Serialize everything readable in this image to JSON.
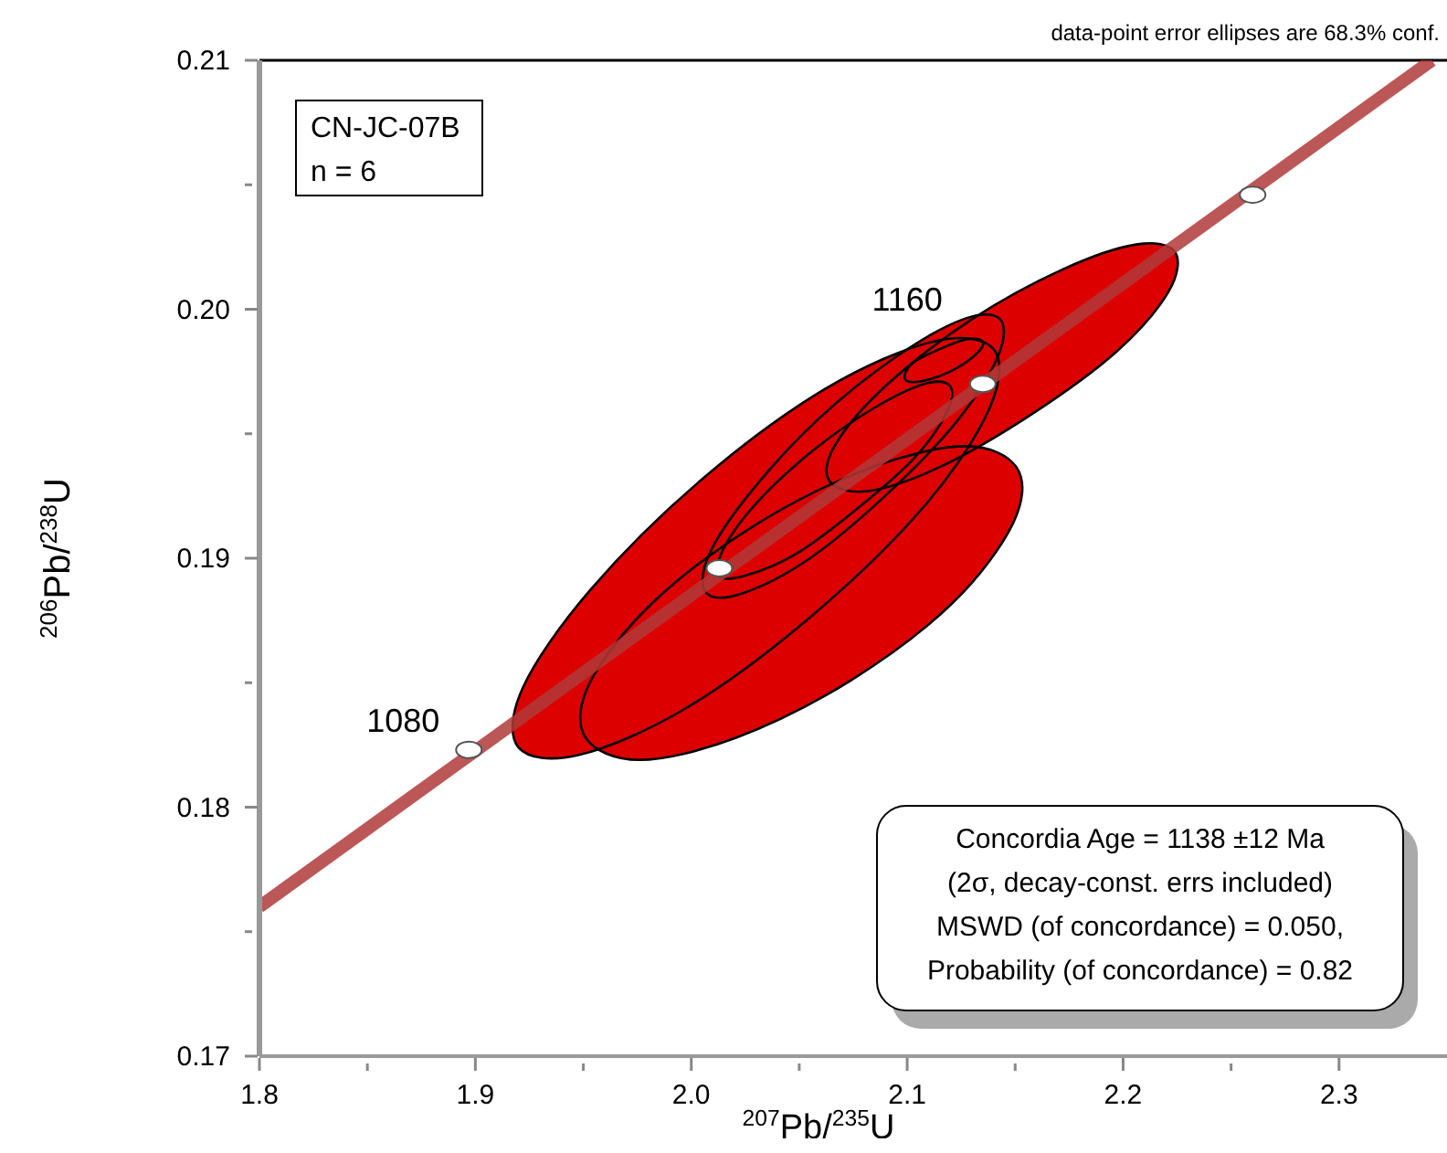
{
  "chart_data": {
    "type": "scatter",
    "xlabel": "$^{207}$Pb/$^{235}$U",
    "ylabel": "$^{206}$Pb/$^{238}$U",
    "xlim": [
      1.8,
      2.35
    ],
    "ylim": [
      0.17,
      0.21
    ],
    "xticks": [
      {
        "value": 1.8,
        "label": "1.8"
      },
      {
        "value": 1.85,
        "label": null
      },
      {
        "value": 1.9,
        "label": "1.9"
      },
      {
        "value": 1.95,
        "label": null
      },
      {
        "value": 2.0,
        "label": "2.0"
      },
      {
        "value": 2.05,
        "label": null
      },
      {
        "value": 2.1,
        "label": "2.1"
      },
      {
        "value": 2.15,
        "label": null
      },
      {
        "value": 2.2,
        "label": "2.2"
      },
      {
        "value": 2.25,
        "label": null
      },
      {
        "value": 2.3,
        "label": "2.3"
      }
    ],
    "yticks": [
      0.17,
      {
        "value": 0.175,
        "label": null
      },
      0.18,
      {
        "value": 0.185,
        "label": null
      },
      0.19,
      {
        "value": 0.195,
        "label": null
      },
      {
        "value": 0.2,
        "label": "0.20"
      },
      {
        "value": 0.205,
        "label": null
      },
      0.21
    ],
    "grid": false,
    "series": [
      {
        "type": "area",
        "color": "#dd0000",
        "x": [
          2.14,
          2.138,
          2.108,
          2.056,
          1.998,
          1.948,
          1.92,
          1.922,
          1.953,
          2.004,
          2.062,
          2.112,
          2.14
        ],
        "values": [
          0.1984,
          0.196,
          0.1921,
          0.1877,
          0.184,
          0.1821,
          0.1824,
          0.1848,
          0.1887,
          0.1931,
          0.1968,
          0.1987,
          0.1984
        ]
      },
      {
        "type": "area",
        "color": "#dd0000",
        "x": [
          2.151,
          2.149,
          2.121,
          2.074,
          2.021,
          1.976,
          1.951,
          1.953,
          1.982,
          2.029,
          2.082,
          2.127,
          2.151
        ],
        "values": [
          0.1936,
          0.1914,
          0.1882,
          0.1851,
          0.1828,
          0.1819,
          0.1828,
          0.185,
          0.1882,
          0.1913,
          0.1936,
          0.1945,
          0.1936
        ]
      },
      {
        "type": "area",
        "color": "#dd0000",
        "x": [
          2.224,
          2.221,
          2.197,
          2.158,
          2.116,
          2.082,
          2.064,
          2.067,
          2.091,
          2.13,
          2.172,
          2.206,
          2.224
        ],
        "values": [
          0.2023,
          0.2007,
          0.1983,
          0.1958,
          0.1937,
          0.1927,
          0.1931,
          0.1946,
          0.197,
          0.1996,
          0.2016,
          0.2026,
          0.2023
        ]
      },
      {
        "type": "area",
        "color": "#dd0000",
        "x": [
          2.143,
          2.142,
          2.123,
          2.091,
          2.055,
          2.024,
          2.007,
          2.008,
          2.027,
          2.059,
          2.095,
          2.126,
          2.143
        ],
        "values": [
          0.1996,
          0.1981,
          0.1955,
          0.1926,
          0.19,
          0.1886,
          0.1886,
          0.1901,
          0.1926,
          0.1956,
          0.1981,
          0.1996,
          0.1996
        ]
      },
      {
        "type": "area",
        "color": "#dd0000",
        "x": [
          2.12,
          2.118,
          2.103,
          2.077,
          2.049,
          2.025,
          2.013,
          2.015,
          2.03,
          2.056,
          2.084,
          2.108,
          2.12
        ],
        "values": [
          0.1969,
          0.1958,
          0.194,
          0.192,
          0.1902,
          0.1893,
          0.1893,
          0.1904,
          0.1922,
          0.1943,
          0.196,
          0.197,
          0.1969
        ]
      },
      {
        "type": "area",
        "color": "#dd0000",
        "x": [
          2.135,
          2.132,
          2.12,
          2.106,
          2.099,
          2.102,
          2.115,
          2.128,
          2.135
        ],
        "values": [
          0.1987,
          0.1982,
          0.1975,
          0.1971,
          0.1972,
          0.1978,
          0.1984,
          0.1988,
          0.1987
        ]
      },
      {
        "type": "line",
        "color": "#b03a3a",
        "marker": "none",
        "x": [
          1.8,
          2.343
        ],
        "values": [
          0.176,
          0.21
        ]
      },
      {
        "color": "#ffffff",
        "marker": "circle",
        "x": [
          1.897,
          2.013,
          2.135,
          2.26
        ],
        "values": [
          0.1823,
          0.1896,
          0.197,
          0.2046
        ]
      }
    ],
    "annotations": [
      "data-point error ellipses are 68.3% conf.",
      "CN-JC-07B",
      "n = 6",
      "Concordia Age = 1138 ±12 Ma",
      "(2σ, decay-const. errs included)",
      "MSWD (of concordance) = 0.050,",
      "Probability (of concordance) = 0.82",
      {
        "text": "1080",
        "x": 1.897,
        "y": 0.1823
      },
      {
        "text": "1160",
        "x": 2.135,
        "y": 0.197
      }
    ]
  }
}
